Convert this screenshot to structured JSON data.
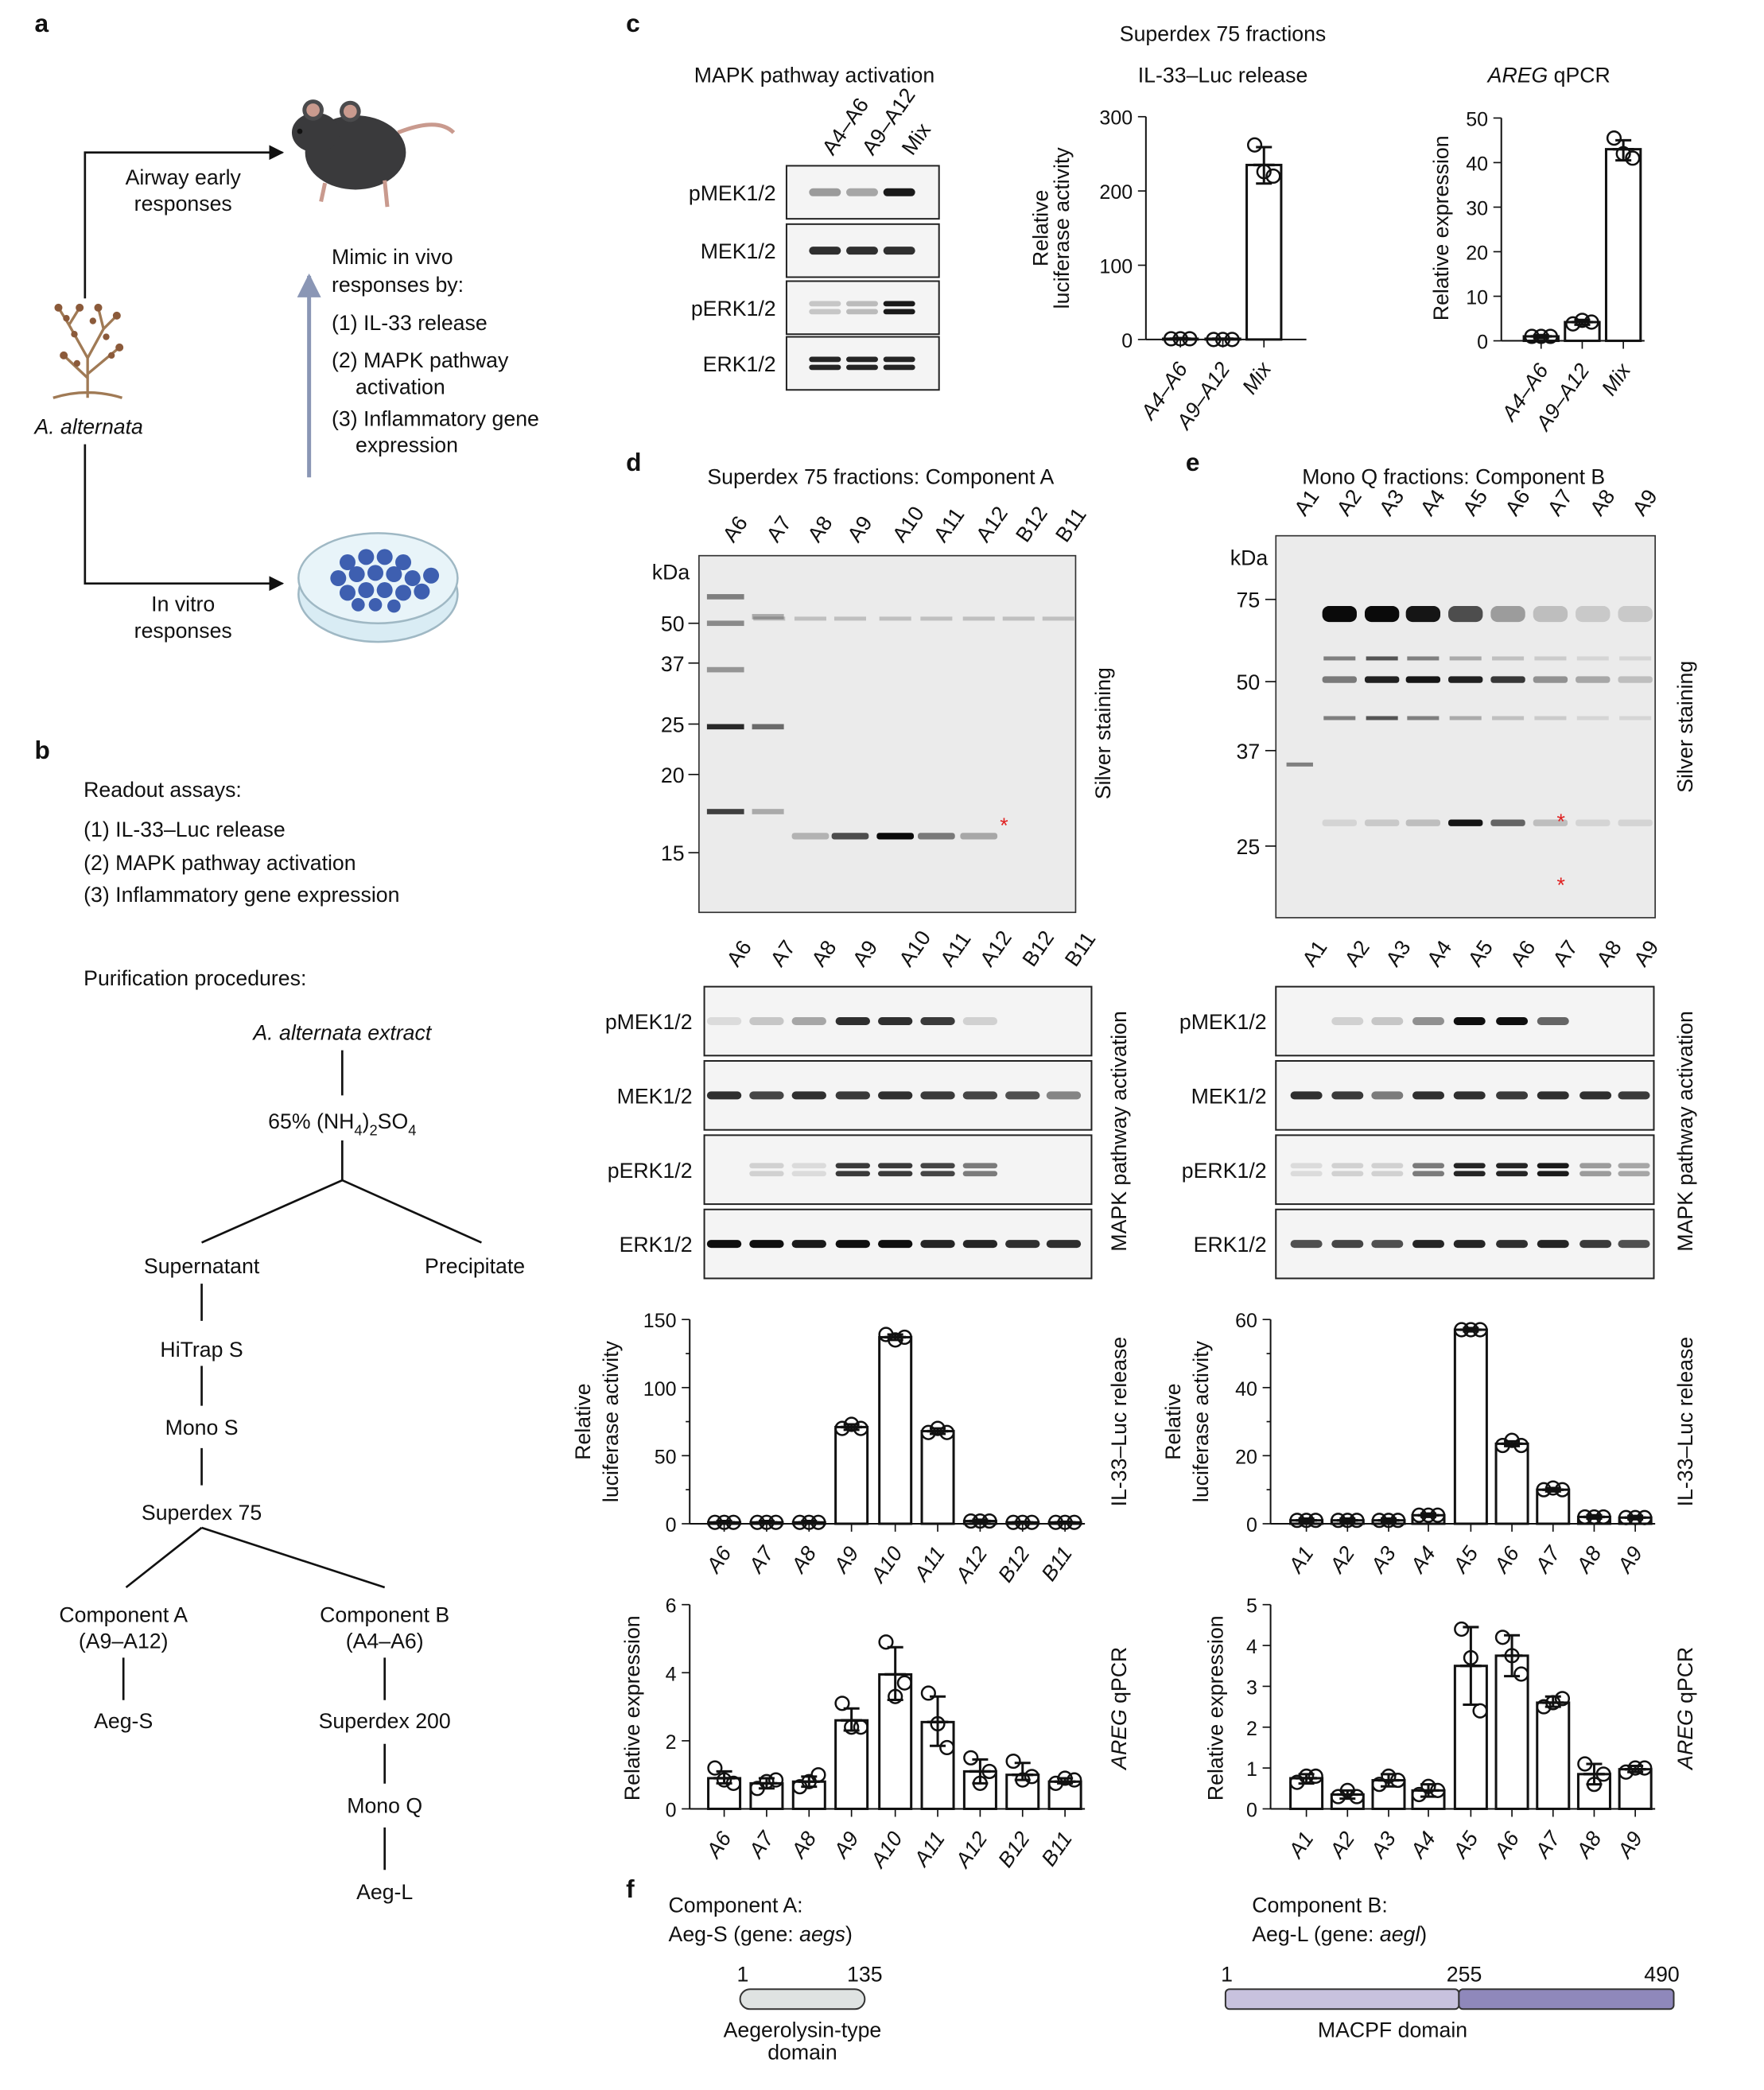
{
  "panel_labels": {
    "a": "a",
    "b": "b",
    "c": "c",
    "d": "d",
    "e": "e",
    "f": "f"
  },
  "panel_a": {
    "in_vivo": [
      "Airway early",
      "responses"
    ],
    "organism": "A. alternata",
    "in_vitro": [
      "In vitro",
      "responses"
    ],
    "mimic": [
      "Mimic in vivo",
      "responses by:",
      "(1) IL-33 release",
      "(2) MAPK pathway",
      "activation",
      "(3) Inflammatory gene",
      "expression"
    ]
  },
  "panel_b": {
    "readout_title": "Readout assays:",
    "readouts": [
      "(1) IL-33–Luc release",
      "(2) MAPK pathway activation",
      "(3) Inflammatory gene expression"
    ],
    "purification_title": "Purification procedures:",
    "extract": "A. alternata extract",
    "salt_prefix": "65% (NH",
    "salt_sub1": "4",
    "salt_mid": ")",
    "salt_sub2": "2",
    "salt_so": "SO",
    "salt_sub3": "4",
    "supernatant": "Supernatant",
    "precipitate": "Precipitate",
    "hitrap": "HiTrap S",
    "monos": "Mono S",
    "superdex75": "Superdex 75",
    "compA": [
      "Component A",
      "(A9–A12)"
    ],
    "aegs": "Aeg-S",
    "compB": [
      "Component B",
      "(A4–A6)"
    ],
    "superdex200": "Superdex 200",
    "monoq": "Mono Q",
    "aegl": "Aeg-L"
  },
  "panel_c": {
    "title": "Superdex 75 fractions",
    "blot_title": "MAPK pathway activation",
    "luc_title": "IL-33–Luc release",
    "areg_title_gene": "AREG",
    "areg_title_rest": " qPCR",
    "lanes": [
      "A4–A6",
      "A9–A12",
      "Mix"
    ],
    "blots": [
      {
        "label": "pMEK1/2",
        "intensity": [
          0.35,
          0.3,
          0.95
        ],
        "double": false
      },
      {
        "label": "MEK1/2",
        "intensity": [
          0.85,
          0.85,
          0.85
        ],
        "double": false
      },
      {
        "label": "pERK1/2",
        "intensity": [
          0.15,
          0.2,
          0.95
        ],
        "double": true
      },
      {
        "label": "ERK1/2",
        "intensity": [
          0.9,
          0.9,
          0.9
        ],
        "double": true
      }
    ]
  },
  "panel_d": {
    "title": "Superdex 75 fractions: Component A",
    "lanes": [
      "A6",
      "A7",
      "A8",
      "A9",
      "A10",
      "A11",
      "A12",
      "B12",
      "B11"
    ],
    "kda_label": "kDa",
    "markers": [
      "50",
      "37",
      "25",
      "20",
      "15"
    ],
    "gel_side_label": "Silver staining",
    "asterisk": "*",
    "blot_side_label": "MAPK pathway activation",
    "luc_side_label": "IL-33–Luc release",
    "areg_side_gene": "AREG",
    "areg_side_rest": " qPCR",
    "blots": [
      {
        "label": "pMEK1/2",
        "intensity": [
          0.05,
          0.15,
          0.3,
          0.85,
          0.85,
          0.8,
          0.1,
          0,
          0
        ],
        "double": false
      },
      {
        "label": "MEK1/2",
        "intensity": [
          0.85,
          0.75,
          0.85,
          0.8,
          0.85,
          0.8,
          0.75,
          0.7,
          0.45
        ],
        "double": false
      },
      {
        "label": "pERK1/2",
        "intensity": [
          0,
          0.1,
          0.05,
          0.8,
          0.8,
          0.75,
          0.5,
          0,
          0
        ],
        "double": true
      },
      {
        "label": "ERK1/2",
        "intensity": [
          1,
          1,
          0.95,
          1,
          1,
          0.9,
          0.9,
          0.85,
          0.85
        ],
        "double": false
      }
    ]
  },
  "panel_e": {
    "title": "Mono Q fractions: Component B",
    "lanes": [
      "A1",
      "A2",
      "A3",
      "A4",
      "A5",
      "A6",
      "A7",
      "A8",
      "A9"
    ],
    "kda_label": "kDa",
    "markers": [
      "75",
      "50",
      "37",
      "25"
    ],
    "gel_side_label": "Silver staining",
    "asterisk": "*",
    "blot_side_label": "MAPK pathway activation",
    "luc_side_label": "IL-33–Luc release",
    "areg_side_gene": "AREG",
    "areg_side_rest": " qPCR",
    "blots": [
      {
        "label": "pMEK1/2",
        "intensity": [
          0,
          0.1,
          0.15,
          0.4,
          1,
          1,
          0.6,
          0,
          0
        ],
        "double": false
      },
      {
        "label": "MEK1/2",
        "intensity": [
          0.85,
          0.8,
          0.5,
          0.85,
          0.85,
          0.8,
          0.85,
          0.85,
          0.8
        ],
        "double": false
      },
      {
        "label": "pERK1/2",
        "intensity": [
          0.05,
          0.1,
          0.1,
          0.5,
          0.9,
          0.9,
          0.95,
          0.35,
          0.3
        ],
        "double": true
      },
      {
        "label": "ERK1/2",
        "intensity": [
          0.7,
          0.75,
          0.7,
          0.9,
          0.9,
          0.85,
          0.9,
          0.8,
          0.7
        ],
        "double": false
      }
    ]
  },
  "panel_f": {
    "compA_title": "Component A:",
    "compA_gene_prefix": "Aeg-S (gene: ",
    "compA_gene": "aegs",
    "compA_gene_suffix": ")",
    "compA_start": "1",
    "compA_end": "135",
    "compA_domain": [
      "Aegerolysin-type",
      "domain"
    ],
    "compB_title": "Component B:",
    "compB_gene_prefix": "Aeg-L (gene: ",
    "compB_gene": "aegl",
    "compB_gene_suffix": ")",
    "compB_start": "1",
    "compB_mid": "255",
    "compB_end": "490",
    "compB_domain": "MACPF domain",
    "colors": {
      "aegerolysin": "#dfe3e2",
      "macpf_left": "#c8c2de",
      "macpf_right": "#8f88bb"
    }
  },
  "chart_data": [
    {
      "id": "c-luc",
      "type": "bar",
      "ylabel": [
        "Relative",
        "luciferase activity"
      ],
      "ylim": [
        0,
        300
      ],
      "yticks": [
        0,
        100,
        200,
        300
      ],
      "categories": [
        "A4–A6",
        "A9–A12",
        "Mix"
      ],
      "values": [
        1,
        1,
        235
      ],
      "error": [
        [
          0,
          2
        ],
        [
          0,
          1
        ],
        [
          210,
          259
        ]
      ],
      "points": [
        [
          1,
          1,
          1
        ],
        [
          0,
          0,
          0
        ],
        [
          262,
          226,
          220
        ]
      ]
    },
    {
      "id": "c-areg",
      "type": "bar",
      "ylabel": [
        "Relative expression"
      ],
      "ylim": [
        0,
        50
      ],
      "yticks": [
        0,
        10,
        20,
        30,
        40,
        50
      ],
      "categories": [
        "A4–A6",
        "A9–A12",
        "Mix"
      ],
      "values": [
        1,
        4.2,
        43
      ],
      "error": [
        [
          0.6,
          1.3
        ],
        [
          3.6,
          4.7
        ],
        [
          40.5,
          45
        ]
      ],
      "points": [
        [
          1,
          1,
          1
        ],
        [
          3.8,
          4.6,
          4.2
        ],
        [
          45.5,
          42,
          41
        ]
      ]
    },
    {
      "id": "d-luc",
      "type": "bar",
      "ylabel": [
        "Relative",
        "luciferase activity"
      ],
      "ylim": [
        0,
        150
      ],
      "yticks": [
        0,
        50,
        100,
        150
      ],
      "categories": [
        "A6",
        "A7",
        "A8",
        "A9",
        "A10",
        "A11",
        "A12",
        "B12",
        "B11"
      ],
      "values": [
        1,
        1,
        1,
        71,
        137,
        68,
        2,
        1,
        1
      ],
      "error": [
        [
          0,
          2
        ],
        [
          0,
          2
        ],
        [
          0,
          2
        ],
        [
          69,
          73
        ],
        [
          135,
          139
        ],
        [
          66,
          70
        ],
        [
          1,
          3
        ],
        [
          0,
          1.5
        ],
        [
          0,
          1.5
        ]
      ],
      "points": [
        [
          1,
          1,
          1
        ],
        [
          1,
          1,
          1
        ],
        [
          1,
          1,
          1
        ],
        [
          70,
          73,
          70
        ],
        [
          139,
          135,
          137
        ],
        [
          67,
          70,
          67
        ],
        [
          2,
          2,
          2
        ],
        [
          1,
          1,
          1
        ],
        [
          1,
          1,
          1
        ]
      ]
    },
    {
      "id": "d-areg",
      "type": "bar",
      "ylabel": [
        "Relative expression"
      ],
      "ylim": [
        0,
        6
      ],
      "yticks": [
        0,
        2,
        4,
        6
      ],
      "categories": [
        "A6",
        "A7",
        "A8",
        "A9",
        "A10",
        "A11",
        "A12",
        "B12",
        "B11"
      ],
      "values": [
        0.9,
        0.75,
        0.8,
        2.6,
        3.95,
        2.55,
        1.1,
        1.0,
        0.8
      ],
      "error": [
        [
          0.75,
          1.1
        ],
        [
          0.6,
          0.9
        ],
        [
          0.65,
          0.95
        ],
        [
          2.3,
          2.95
        ],
        [
          3.2,
          4.75
        ],
        [
          1.85,
          3.3
        ],
        [
          0.75,
          1.45
        ],
        [
          0.85,
          1.35
        ],
        [
          0.75,
          0.9
        ]
      ],
      "points": [
        [
          1.2,
          0.85,
          0.75
        ],
        [
          0.6,
          0.8,
          0.85
        ],
        [
          0.65,
          0.8,
          1.0
        ],
        [
          3.1,
          2.4,
          2.4
        ],
        [
          4.9,
          3.3,
          3.7
        ],
        [
          3.4,
          2.5,
          1.8
        ],
        [
          1.5,
          0.75,
          1.1
        ],
        [
          1.4,
          0.85,
          0.95
        ],
        [
          0.75,
          0.9,
          0.85
        ]
      ]
    },
    {
      "id": "e-luc",
      "type": "bar",
      "ylabel": [
        "Relative",
        "luciferase activity"
      ],
      "ylim": [
        0,
        60
      ],
      "yticks": [
        0,
        20,
        40,
        60
      ],
      "categories": [
        "A1",
        "A2",
        "A3",
        "A4",
        "A5",
        "A6",
        "A7",
        "A8",
        "A9"
      ],
      "values": [
        1,
        1,
        1,
        2.5,
        57,
        23.5,
        10,
        2,
        1.8
      ],
      "error": [
        [
          0.5,
          1.5
        ],
        [
          0.5,
          1.5
        ],
        [
          0.5,
          1.5
        ],
        [
          2,
          3
        ],
        [
          56.5,
          57.5
        ],
        [
          22.8,
          24.2
        ],
        [
          9.5,
          10.5
        ],
        [
          1.5,
          2.5
        ],
        [
          1.3,
          2.3
        ]
      ],
      "points": [
        [
          1,
          1,
          1
        ],
        [
          1,
          1,
          1
        ],
        [
          1,
          1,
          1
        ],
        [
          2.5,
          2.5,
          2.5
        ],
        [
          57,
          57,
          57
        ],
        [
          23,
          24.5,
          23
        ],
        [
          10,
          10.5,
          10
        ],
        [
          2,
          2,
          2
        ],
        [
          1.8,
          1.8,
          1.8
        ]
      ]
    },
    {
      "id": "e-areg",
      "type": "bar",
      "ylabel": [
        "Relative expression"
      ],
      "ylim": [
        0,
        5
      ],
      "yticks": [
        0,
        1,
        2,
        3,
        4,
        5
      ],
      "categories": [
        "A1",
        "A2",
        "A3",
        "A4",
        "A5",
        "A6",
        "A7",
        "A8",
        "A9"
      ],
      "values": [
        0.75,
        0.35,
        0.7,
        0.45,
        3.5,
        3.75,
        2.6,
        0.85,
        0.97
      ],
      "error": [
        [
          0.62,
          0.85
        ],
        [
          0.25,
          0.45
        ],
        [
          0.55,
          0.85
        ],
        [
          0.3,
          0.6
        ],
        [
          2.55,
          4.45
        ],
        [
          3.25,
          4.25
        ],
        [
          2.5,
          2.75
        ],
        [
          0.6,
          1.1
        ],
        [
          0.9,
          1.05
        ]
      ],
      "points": [
        [
          0.65,
          0.8,
          0.8
        ],
        [
          0.3,
          0.45,
          0.3
        ],
        [
          0.6,
          0.8,
          0.7
        ],
        [
          0.35,
          0.55,
          0.45
        ],
        [
          4.4,
          3.7,
          2.4
        ],
        [
          4.2,
          3.75,
          3.3
        ],
        [
          2.5,
          2.6,
          2.7
        ],
        [
          1.1,
          0.6,
          0.85
        ],
        [
          0.9,
          1.0,
          1.0
        ]
      ]
    }
  ]
}
